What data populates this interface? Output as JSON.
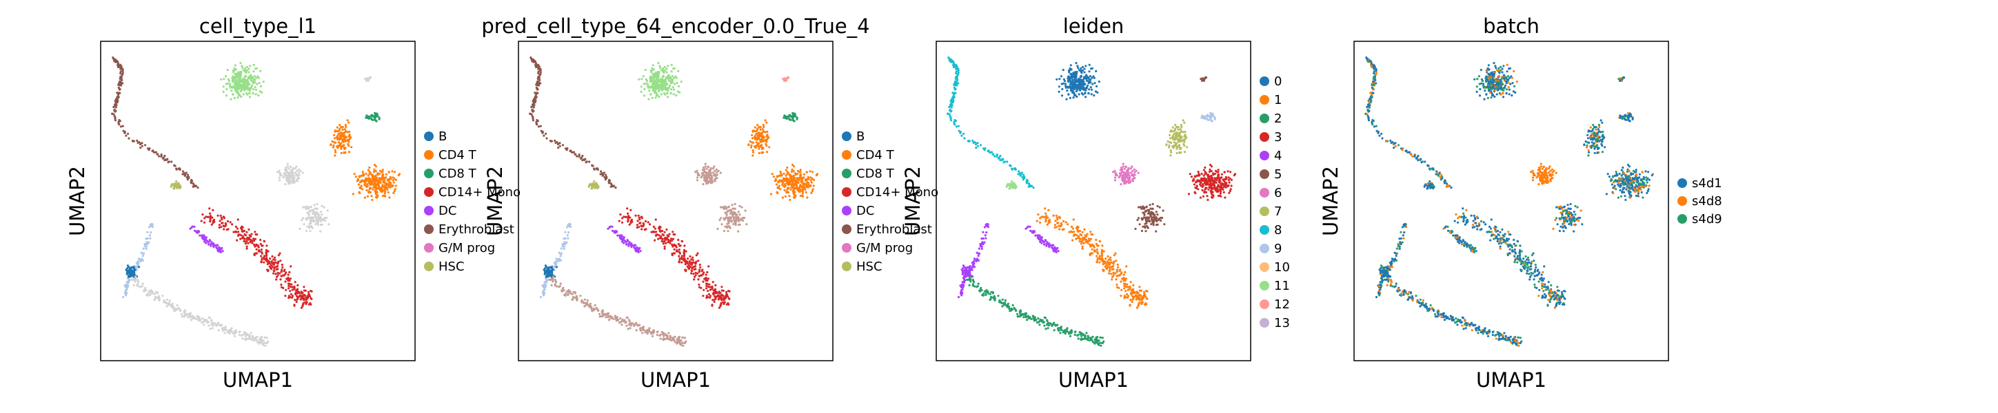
{
  "chart_data": [
    {
      "type": "scatter",
      "title": "cell_type_l1",
      "xlabel": "UMAP1",
      "ylabel": "UMAP2",
      "grid": false,
      "legend_position": "right",
      "categories": [
        "B",
        "CD4 T",
        "CD8 T",
        "CD14+ Mono",
        "DC",
        "Erythroblast",
        "G/M prog",
        "HSC"
      ],
      "colors": [
        "#1f77b4",
        "#ff7f0e",
        "#279e68",
        "#d62728",
        "#aa40fc",
        "#8c564b",
        "#e377c2",
        "#b5bd61"
      ],
      "unlabeled_color": "#d3d3d3"
    },
    {
      "type": "scatter",
      "title": "pred_cell_type_64_encoder_0.0_True_4",
      "xlabel": "UMAP1",
      "ylabel": "UMAP2",
      "grid": false,
      "legend_position": "right",
      "categories": [
        "B",
        "CD4 T",
        "CD8 T",
        "CD14+ Mono",
        "DC",
        "Erythroblast",
        "G/M prog",
        "HSC"
      ],
      "colors": [
        "#1f77b4",
        "#ff7f0e",
        "#279e68",
        "#d62728",
        "#aa40fc",
        "#8c564b",
        "#e377c2",
        "#b5bd61"
      ],
      "other_color": "#c49c94"
    },
    {
      "type": "scatter",
      "title": "leiden",
      "xlabel": "UMAP1",
      "ylabel": "UMAP2",
      "grid": false,
      "legend_position": "right",
      "categories": [
        "0",
        "1",
        "2",
        "3",
        "4",
        "5",
        "6",
        "7",
        "8",
        "9",
        "10",
        "11",
        "12",
        "13"
      ],
      "colors": [
        "#1f77b4",
        "#ff7f0e",
        "#279e68",
        "#d62728",
        "#aa40fc",
        "#8c564b",
        "#e377c2",
        "#b5bd61",
        "#17becf",
        "#aec7e8",
        "#ffbb78",
        "#98df8a",
        "#ff9896",
        "#c5b0d5"
      ]
    },
    {
      "type": "scatter",
      "title": "batch",
      "xlabel": "UMAP1",
      "ylabel": "UMAP2",
      "grid": false,
      "legend_position": "right",
      "categories": [
        "s4d1",
        "s4d8",
        "s4d9"
      ],
      "colors": [
        "#1f77b4",
        "#ff7f0e",
        "#279e68"
      ]
    }
  ]
}
